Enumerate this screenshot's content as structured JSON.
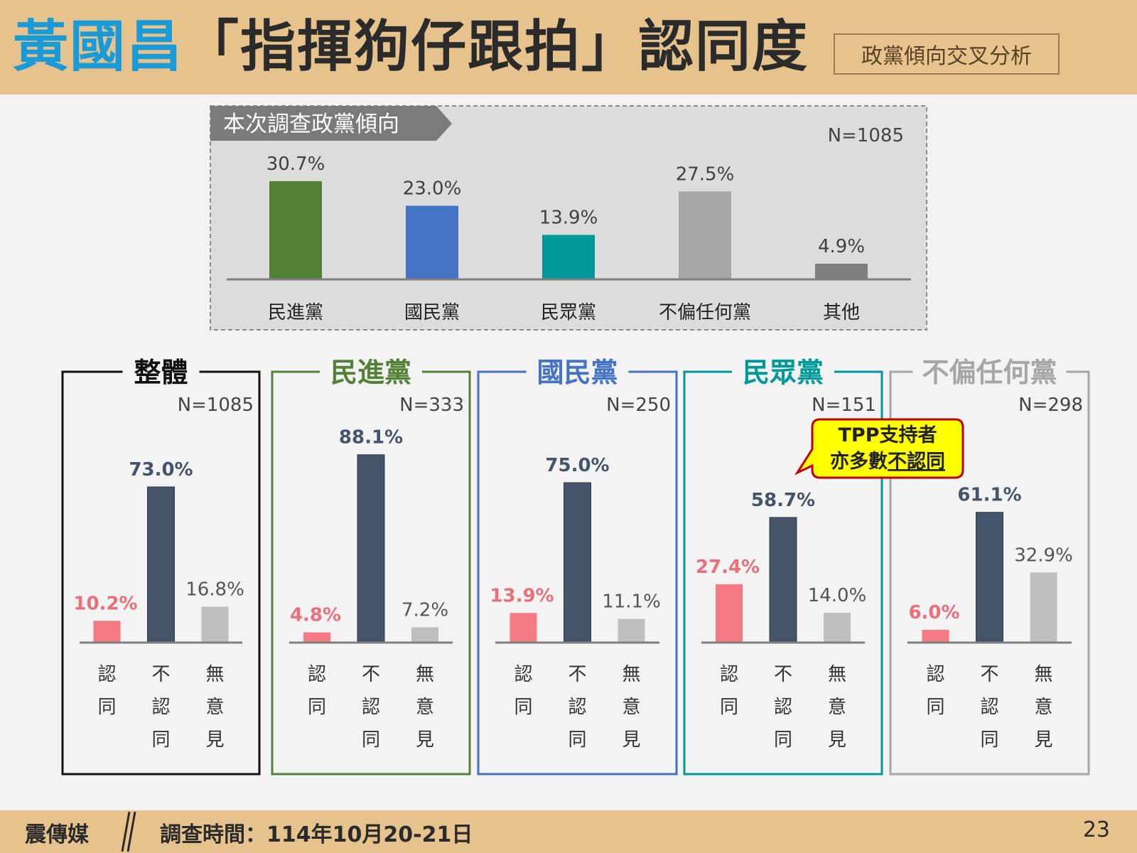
{
  "header": {
    "title_highlight": "黃國昌",
    "title_rest": "「指揮狗仔跟拍」認同度",
    "subtitle": "政黨傾向交叉分析"
  },
  "footer": {
    "brand": "震傳媒",
    "survey_time": "調查時間：114年10月20-21日",
    "page_number": "23"
  },
  "callout": {
    "line1": "TPP支持者",
    "line2_prefix": "亦多數",
    "line2_underlined": "不認同"
  },
  "colors": {
    "dpp": "#538135",
    "kmt": "#4472c4",
    "tpp": "#009999",
    "neutral": "#a6a6a6",
    "other": "#7f7f7f",
    "approve": "#f47a84",
    "disapprove": "#44546a",
    "no_opinion": "#bfbfbf",
    "approve_label": "#e8707a",
    "overall_frame": "#111111"
  },
  "chart_data": [
    {
      "type": "bar",
      "title": "本次調查政黨傾向",
      "n_label": "N=1085",
      "categories": [
        "民進黨",
        "國民黨",
        "民眾黨",
        "不偏任何黨",
        "其他"
      ],
      "values": [
        30.7,
        23.0,
        13.9,
        27.5,
        4.9
      ],
      "value_labels": [
        "30.7%",
        "23.0%",
        "13.9%",
        "27.5%",
        "4.9%"
      ],
      "unit": "%"
    },
    {
      "type": "bar",
      "groups": [
        {
          "name": "整體",
          "n_label": "N=1085",
          "values": [
            10.2,
            73.0,
            16.8
          ],
          "value_labels": [
            "10.2%",
            "73.0%",
            "16.8%"
          ]
        },
        {
          "name": "民進黨",
          "n_label": "N=333",
          "values": [
            4.8,
            88.1,
            7.2
          ],
          "value_labels": [
            "4.8%",
            "88.1%",
            "7.2%"
          ]
        },
        {
          "name": "國民黨",
          "n_label": "N=250",
          "values": [
            13.9,
            75.0,
            11.1
          ],
          "value_labels": [
            "13.9%",
            "75.0%",
            "11.1%"
          ]
        },
        {
          "name": "民眾黨",
          "n_label": "N=151",
          "values": [
            27.4,
            58.7,
            14.0
          ],
          "value_labels": [
            "27.4%",
            "58.7%",
            "14.0%"
          ]
        },
        {
          "name": "不偏任何黨",
          "n_label": "N=298",
          "values": [
            6.0,
            61.1,
            32.9
          ],
          "value_labels": [
            "6.0%",
            "61.1%",
            "32.9%"
          ]
        }
      ],
      "categories": [
        "認同",
        "不認同",
        "無意見"
      ],
      "unit": "%"
    }
  ]
}
